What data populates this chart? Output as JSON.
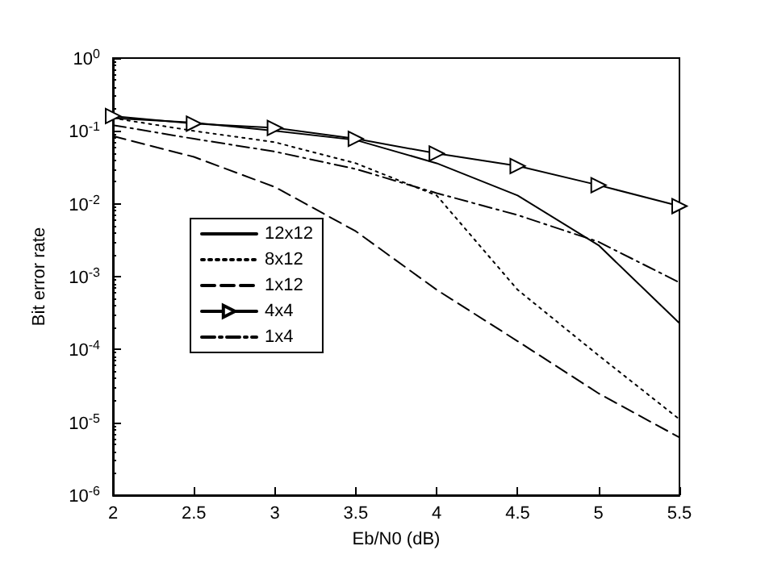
{
  "chart_data": {
    "type": "line",
    "xlabel": "Eb/N0 (dB)",
    "ylabel": "Bit error rate",
    "log": "y",
    "grid": false,
    "legend": "left",
    "x": [
      2,
      2.5,
      3,
      3.5,
      4,
      4.5,
      5,
      5.5
    ],
    "xlim": [
      2,
      5.5
    ],
    "xticks": [
      2,
      2.5,
      3,
      3.5,
      4,
      4.5,
      5,
      5.5
    ],
    "ylim": [
      1e-06,
      1
    ],
    "yticks": [
      {
        "value": 1e-06,
        "label": "10$^{-6}$"
      },
      {
        "value": 1e-05,
        "label": "10$^{-5}$"
      },
      {
        "value": 0.0001,
        "label": "10$^{-4}$"
      },
      {
        "value": 0.001,
        "label": "10$^{-3}$"
      },
      {
        "value": 0.01,
        "label": "10$^{-2}$"
      },
      {
        "value": 0.1,
        "label": "10$^{-1}$"
      },
      {
        "value": 1,
        "label": "10$^{0}$"
      }
    ],
    "series": [
      {
        "name": "12x12",
        "color": "#000000",
        "line_style": "solid",
        "marker": "none",
        "values": [
          0.15,
          0.13,
          0.1,
          0.075,
          0.036,
          0.013,
          0.0027,
          0.00023
        ]
      },
      {
        "name": "8x12",
        "color": "#000000",
        "line_style": "dotted",
        "marker": "none",
        "values": [
          0.15,
          0.1,
          0.07,
          0.036,
          0.013,
          0.00066,
          8.3e-05,
          1.1e-05
        ]
      },
      {
        "name": "1x12",
        "color": "#000000",
        "line_style": "dashed",
        "marker": "none",
        "values": [
          0.085,
          0.044,
          0.017,
          0.0042,
          0.00066,
          0.00013,
          2.5e-05,
          6.2e-06
        ]
      },
      {
        "name": "4x4",
        "color": "#000000",
        "line_style": "solid",
        "marker": "triangle",
        "values": [
          0.16,
          0.126,
          0.11,
          0.078,
          0.049,
          0.033,
          0.018,
          0.0093
        ]
      },
      {
        "name": "1x4",
        "color": "#000000",
        "line_style": "dashdot",
        "marker": "none",
        "values": [
          0.12,
          0.078,
          0.052,
          0.03,
          0.014,
          0.007,
          0.003,
          0.00083
        ]
      }
    ]
  }
}
